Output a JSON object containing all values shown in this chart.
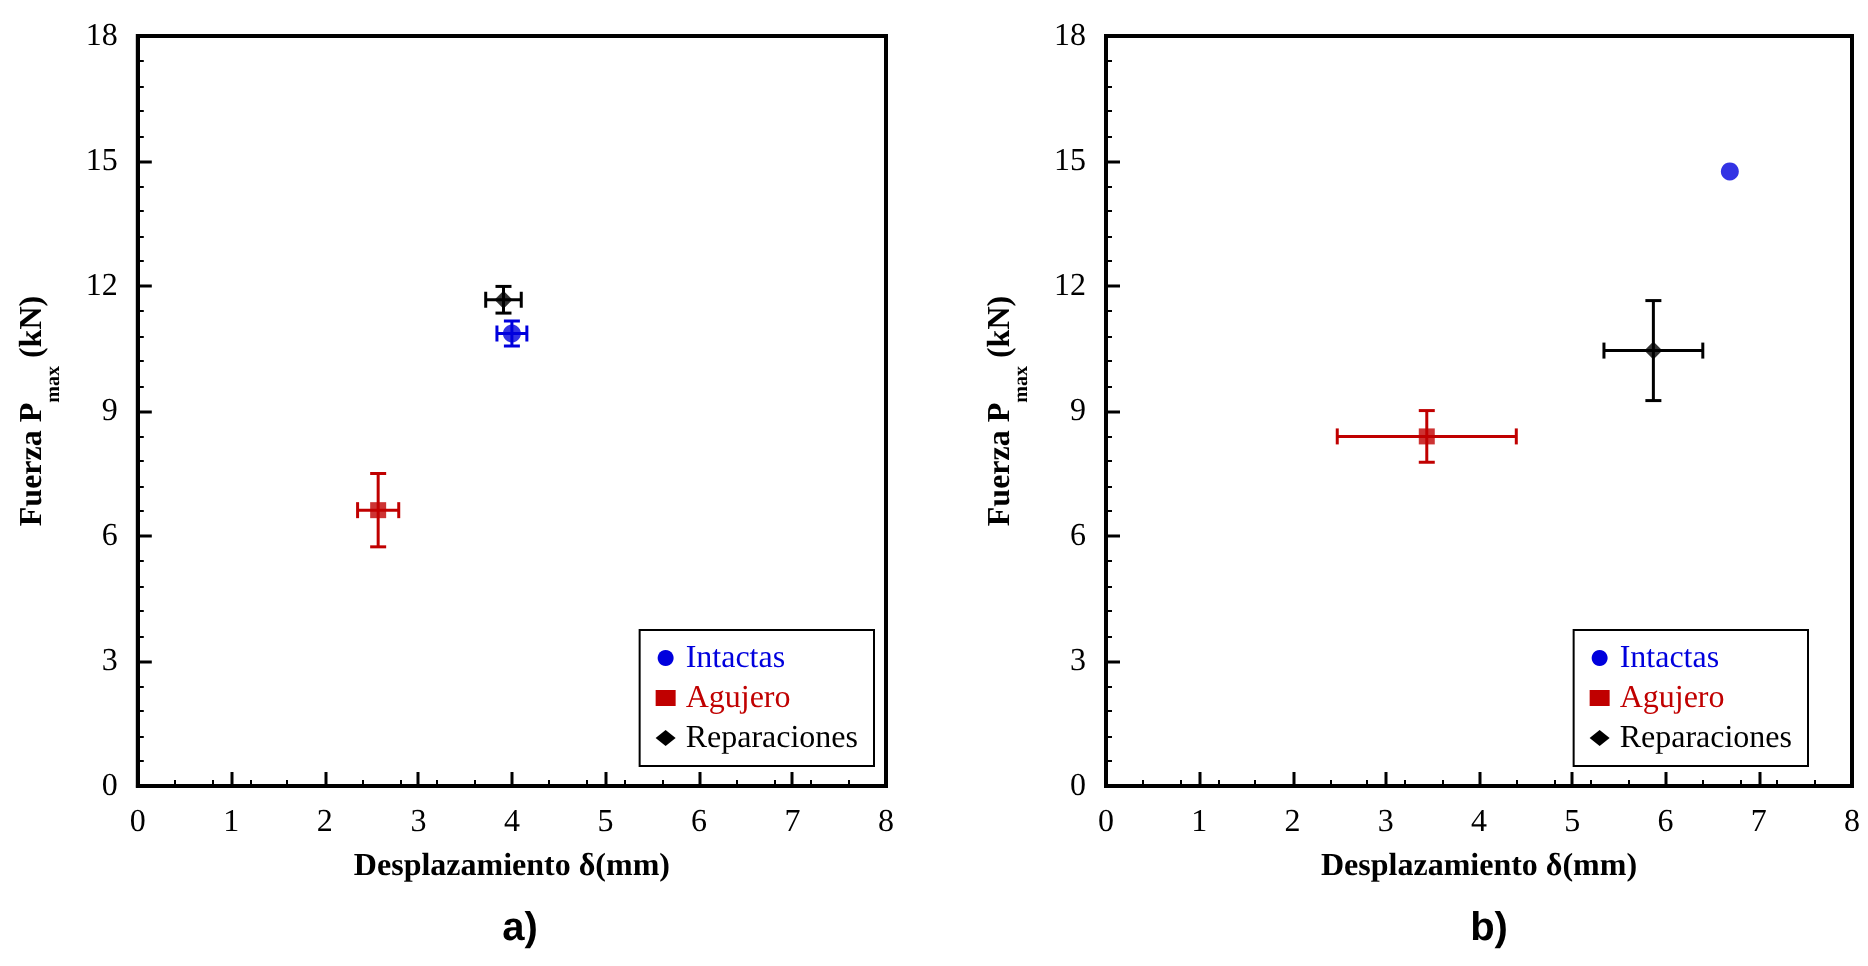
{
  "chart_data": [
    {
      "type": "scatter",
      "title": "a)",
      "xlabel": "Desplazamiento δ(mm)",
      "ylabel": "Fuerza P$_{max}$ (kN)",
      "xlim": [
        0,
        8
      ],
      "xticks": [
        0,
        1,
        2,
        3,
        4,
        5,
        6,
        7,
        8
      ],
      "ylim": [
        0,
        18
      ],
      "yticks": [
        0,
        3,
        6,
        9,
        12,
        15,
        18
      ],
      "legend": "bottom right",
      "grid": false,
      "series": [
        {
          "name": "Intactas",
          "color": "#0000dd",
          "marker": "circle",
          "x": [
            4.0
          ],
          "values": [
            10.86
          ],
          "errors": [
            0.3
          ],
          "xerrors": [
            0.16
          ]
        },
        {
          "name": "Agujero",
          "color": "#c00000",
          "marker": "square",
          "x": [
            2.57
          ],
          "values": [
            6.62
          ],
          "errors": [
            0.88
          ],
          "xerrors": [
            0.22
          ]
        },
        {
          "name": "Reparaciones",
          "color": "#000000",
          "marker": "diamond",
          "x": [
            3.91
          ],
          "values": [
            11.67
          ],
          "errors": [
            0.32
          ],
          "xerrors": [
            0.19
          ]
        }
      ]
    },
    {
      "type": "scatter",
      "title": "b)",
      "xlabel": "Desplazamiento δ(mm)",
      "ylabel": "Fuerza P$_{max}$ (kN)",
      "xlim": [
        0,
        8
      ],
      "xticks": [
        0,
        1,
        2,
        3,
        4,
        5,
        6,
        7,
        8
      ],
      "ylim": [
        0,
        18
      ],
      "yticks": [
        0,
        3,
        6,
        9,
        12,
        15,
        18
      ],
      "legend": "bottom right",
      "grid": false,
      "series": [
        {
          "name": "Intactas",
          "color": "#0000dd",
          "marker": "circle",
          "x": [
            6.69
          ],
          "values": [
            14.75
          ],
          "errors": [
            null
          ],
          "xerrors": [
            null
          ]
        },
        {
          "name": "Agujero",
          "color": "#c00000",
          "marker": "square",
          "x": [
            3.44
          ],
          "values": [
            8.39
          ],
          "errors": [
            0.62
          ],
          "xerrors": [
            0.96
          ]
        },
        {
          "name": "Reparaciones",
          "color": "#000000",
          "marker": "diamond",
          "x": [
            5.87
          ],
          "values": [
            10.45
          ],
          "errors": [
            1.2
          ],
          "xerrors": [
            0.53
          ]
        }
      ]
    }
  ]
}
